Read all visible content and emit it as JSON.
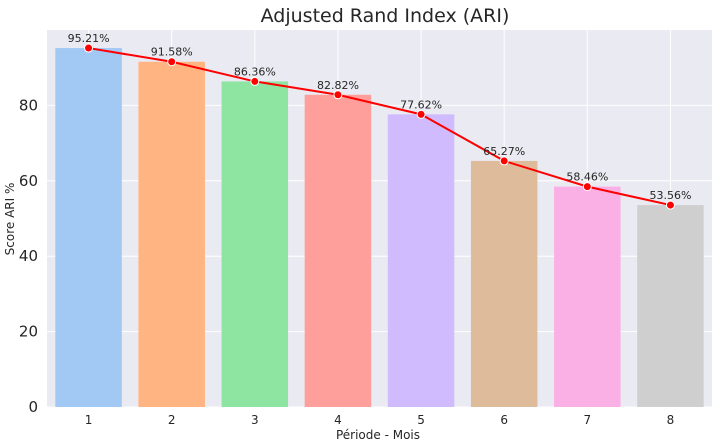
{
  "chart_data": {
    "type": "bar",
    "title": "Adjusted Rand Index (ARI)",
    "xlabel": "Période - Mois",
    "ylabel": "Score ARI %",
    "categories": [
      "1",
      "2",
      "3",
      "4",
      "5",
      "6",
      "7",
      "8"
    ],
    "values": [
      95.21,
      91.58,
      86.36,
      82.82,
      77.62,
      65.27,
      58.46,
      53.56
    ],
    "data_labels": [
      "95.21%",
      "91.58%",
      "86.36%",
      "82.82%",
      "77.62%",
      "65.27%",
      "58.46%",
      "53.56%"
    ],
    "overlay_line": {
      "type": "line",
      "color": "#ff0000",
      "marker": "circle"
    },
    "bar_colors": [
      "#a1c9f4",
      "#ffb482",
      "#8de5a1",
      "#ff9f9b",
      "#d0bbff",
      "#debb9b",
      "#fab0e4",
      "#cfcfcf"
    ],
    "ylim": [
      0,
      100
    ],
    "yticks": [
      0,
      20,
      40,
      60,
      80
    ],
    "grid": true,
    "background": "#eaeaf2"
  }
}
